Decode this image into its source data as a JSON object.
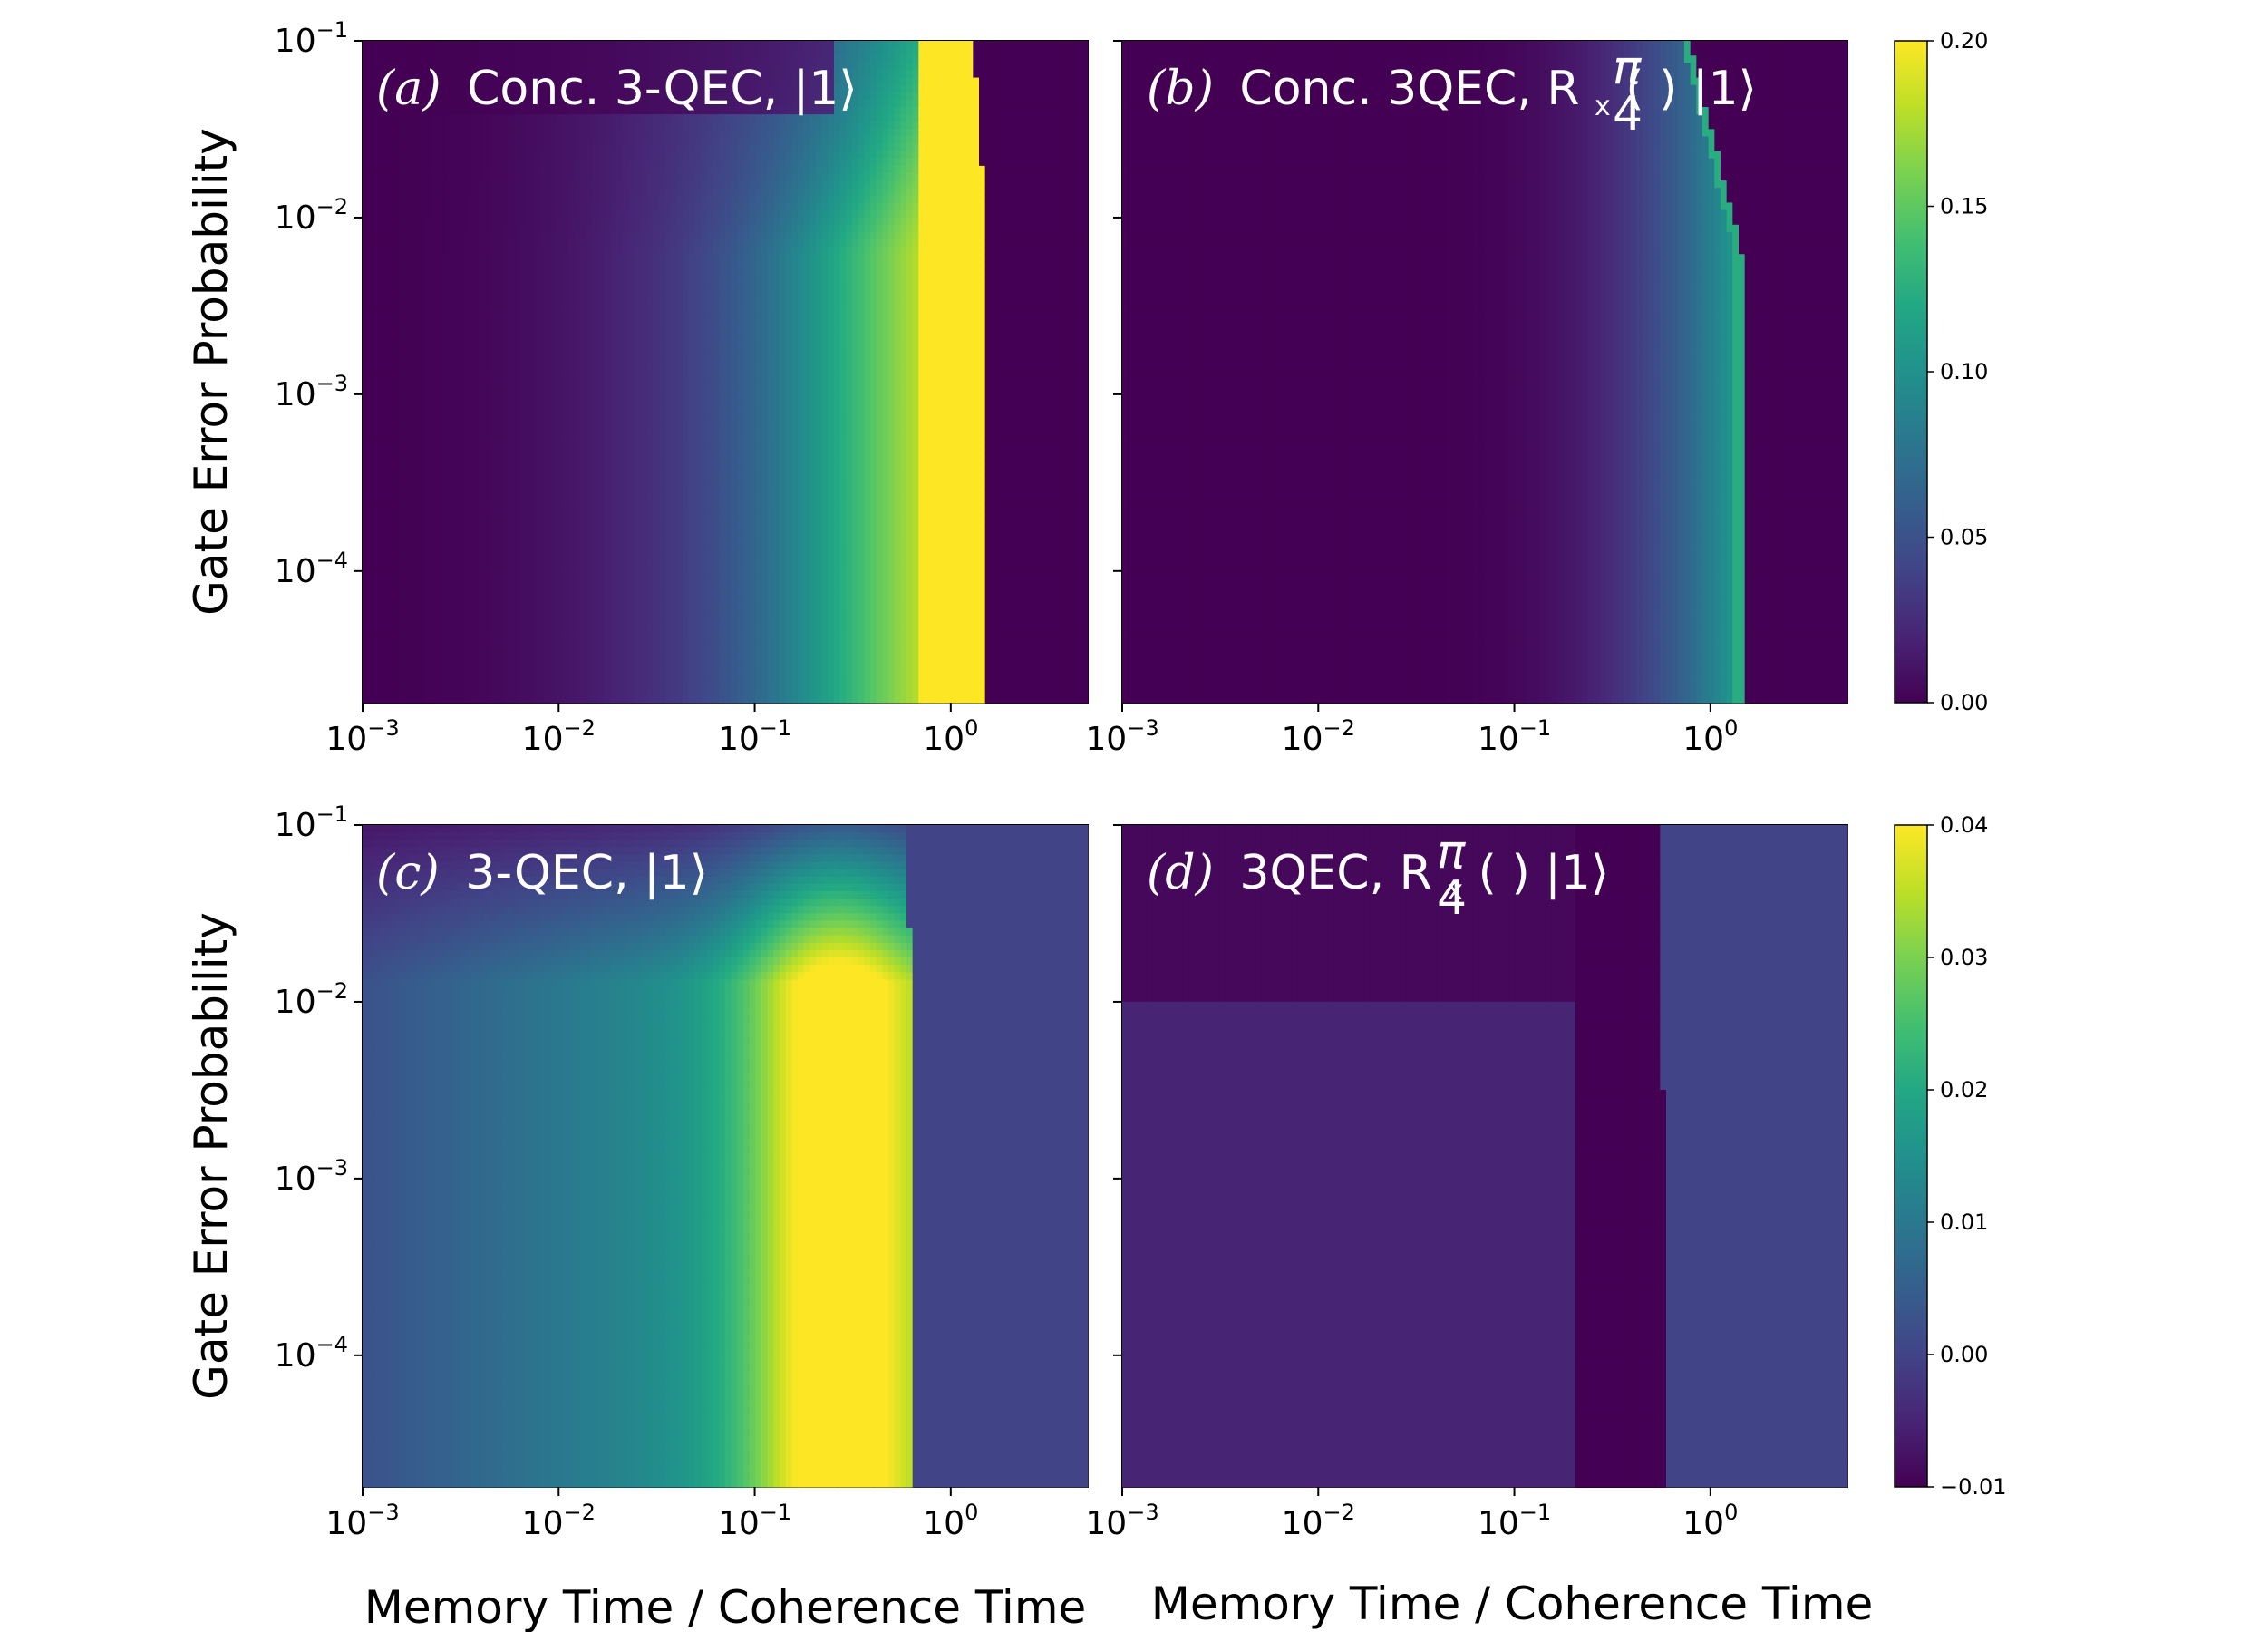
{
  "figure": {
    "colormap": "viridis",
    "ylabel": "Gate Error Probability",
    "xlabel": "Memory Time / Coherence Time",
    "x_tick_labels": [
      "10",
      "10",
      "10",
      "10"
    ],
    "x_tick_exponents": [
      "−3",
      "−2",
      "−1",
      "0"
    ],
    "y_tick_labels": [
      "10",
      "10",
      "10",
      "10"
    ],
    "y_tick_exponents": [
      "−1",
      "−2",
      "−3",
      "−4"
    ],
    "colors": {
      "viridis_dark": "#440154",
      "viridis_mid": "#21918c",
      "viridis_bright": "#fde725"
    }
  },
  "chart_data": [
    {
      "type": "heatmap",
      "panel": "a",
      "label_prefix": "(a)",
      "label": "Conc. 3-QEC, |1⟩",
      "x_scale": "log",
      "y_scale": "log",
      "xlim": [
        0.001,
        5
      ],
      "ylim": [
        1.8e-05,
        0.1
      ],
      "colorbar": {
        "range": [
          0.0,
          0.2
        ],
        "ticks": [
          "0.00",
          "0.05",
          "0.10",
          "0.15",
          "0.20"
        ]
      },
      "description_values": {
        "x_at_saturation": 1.0,
        "cutoff_x_at_low_error": 1.5,
        "max_value": 0.2,
        "outside_region_value": 0.0
      }
    },
    {
      "type": "heatmap",
      "panel": "b",
      "label_prefix": "(b)",
      "label": "Conc. 3QEC, R",
      "label_sub": "x",
      "label_frac_num": "π",
      "label_frac_den": "4",
      "label_suffix": "|1⟩",
      "x_scale": "log",
      "y_scale": "log",
      "xlim": [
        0.001,
        5
      ],
      "ylim": [
        1.8e-05,
        0.1
      ],
      "colorbar": {
        "range": [
          0.0,
          0.2
        ],
        "ticks": [
          "0.00",
          "0.05",
          "0.10",
          "0.15",
          "0.20"
        ]
      },
      "description_values": {
        "cutoff_x_at_low_error": 1.45,
        "max_value": 0.13,
        "outside_region_value": 0.0
      }
    },
    {
      "type": "heatmap",
      "panel": "c",
      "label_prefix": "(c)",
      "label": "3-QEC, |1⟩",
      "x_scale": "log",
      "y_scale": "log",
      "xlim": [
        0.001,
        5
      ],
      "ylim": [
        1.8e-05,
        0.1
      ],
      "colorbar": {
        "range": [
          -0.01,
          0.04
        ],
        "ticks": [
          "−0.01",
          "0.00",
          "0.01",
          "0.02",
          "0.03",
          "0.04"
        ]
      },
      "description_values": {
        "peak_x": 0.25,
        "cutoff_x": 0.65,
        "max_value": 0.04,
        "right_region_value": 0.0
      }
    },
    {
      "type": "heatmap",
      "panel": "d",
      "label_prefix": "(d)",
      "label": "3QEC, R",
      "label_sub": "x",
      "label_frac_num": "π",
      "label_frac_den": "4",
      "label_suffix": "|1⟩",
      "x_scale": "log",
      "y_scale": "log",
      "xlim": [
        0.001,
        5
      ],
      "ylim": [
        1.8e-05,
        0.1
      ],
      "colorbar": {
        "range": [
          -0.01,
          0.04
        ],
        "ticks": [
          "−0.01",
          "0.00",
          "0.01",
          "0.02",
          "0.03",
          "0.04"
        ]
      },
      "description_values": {
        "dark_band_x": [
          0.2,
          0.6
        ],
        "right_region_value": 0.0,
        "left_region_value": -0.004,
        "min_value": -0.01
      }
    }
  ]
}
